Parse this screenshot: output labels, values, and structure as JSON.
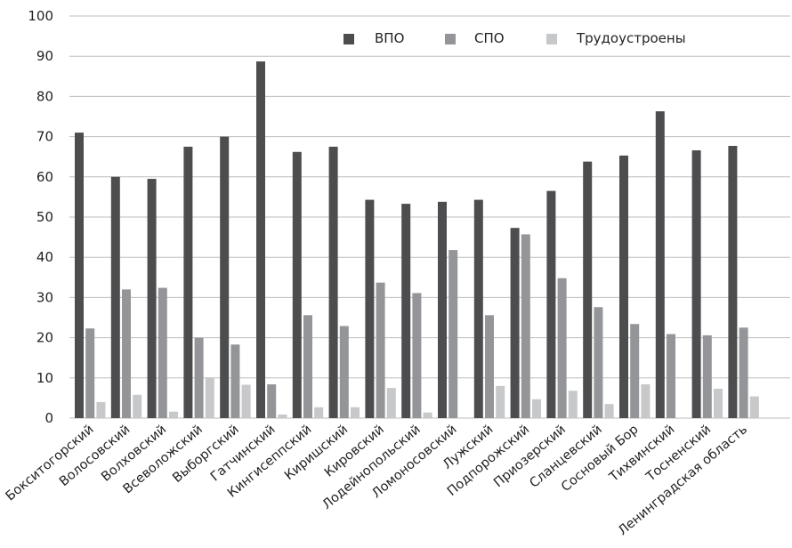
{
  "chart_data": {
    "type": "bar",
    "categories": [
      "Бокситогорский",
      "Волосовский",
      "Волховский",
      "Всеволожский",
      "Выборгский",
      "Гатчинский",
      "Кингисеппский",
      "Киришский",
      "Кировский",
      "Лодейнопольский",
      "Ломоносовский",
      "Лужский",
      "Подпорожский",
      "Приозерский",
      "Сланцевский",
      "Сосновый Бор",
      "Тихвинский",
      "Тосненский",
      "Ленинградская область"
    ],
    "series": [
      {
        "name": "ВПО",
        "color": "#4d4d4f",
        "values": [
          71,
          60,
          59.5,
          67.5,
          70,
          88.7,
          66.2,
          67.5,
          54.3,
          53.3,
          53.8,
          54.3,
          47.3,
          56.5,
          63.8,
          65.3,
          76.3,
          66.6,
          67.7
        ]
      },
      {
        "name": "СПО",
        "color": "#939598",
        "values": [
          22.3,
          32,
          32.4,
          20,
          18.3,
          8.4,
          25.6,
          22.9,
          33.7,
          31.1,
          41.8,
          25.6,
          45.7,
          34.8,
          27.6,
          23.4,
          20.9,
          20.6,
          22.5
        ]
      },
      {
        "name": "Трудоустроены",
        "color": "#c7c8ca",
        "values": [
          4,
          5.8,
          1.6,
          10,
          8.3,
          0.9,
          2.7,
          2.7,
          7.5,
          1.4,
          0,
          8,
          4.7,
          6.8,
          3.5,
          8.4,
          0,
          7.3,
          5.4
        ]
      }
    ],
    "y_ticks": [
      "0",
      "10",
      "20",
      "30",
      "40",
      "50",
      "60",
      "70",
      "80",
      "90",
      "100"
    ],
    "ylim": [
      0,
      100
    ],
    "grid": true,
    "legend_position": "top-center"
  }
}
